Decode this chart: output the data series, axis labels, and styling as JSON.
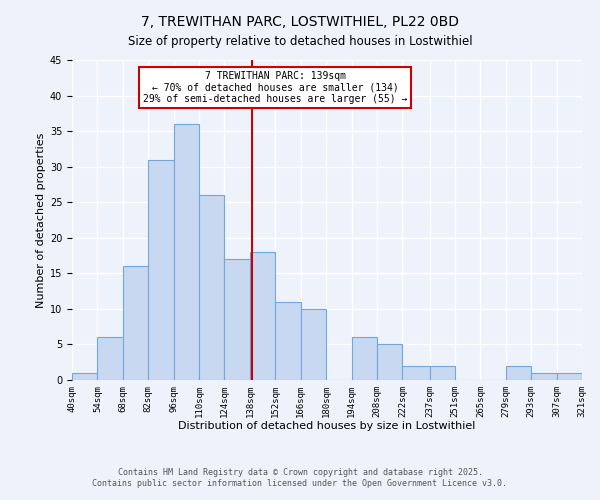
{
  "title": "7, TREWITHAN PARC, LOSTWITHIEL, PL22 0BD",
  "subtitle": "Size of property relative to detached houses in Lostwithiel",
  "xlabel": "Distribution of detached houses by size in Lostwithiel",
  "ylabel": "Number of detached properties",
  "bin_edges": [
    40,
    54,
    68,
    82,
    96,
    110,
    124,
    138,
    152,
    166,
    180,
    194,
    208,
    222,
    237,
    251,
    265,
    279,
    293,
    307,
    321
  ],
  "counts": [
    1,
    6,
    16,
    31,
    36,
    26,
    17,
    18,
    11,
    10,
    0,
    6,
    5,
    2,
    2,
    0,
    0,
    2,
    1,
    1
  ],
  "bar_color": "#c8d8f0",
  "bar_edge_color": "#6fa8dc",
  "property_size": 139,
  "vline_color": "#cc0000",
  "annotation_title": "7 TREWITHAN PARC: 139sqm",
  "annotation_line1": "← 70% of detached houses are smaller (134)",
  "annotation_line2": "29% of semi-detached houses are larger (55) →",
  "annotation_box_color": "#ffffff",
  "annotation_box_edge": "#cc0000",
  "ylim": [
    0,
    45
  ],
  "yticks": [
    0,
    5,
    10,
    15,
    20,
    25,
    30,
    35,
    40,
    45
  ],
  "footer1": "Contains HM Land Registry data © Crown copyright and database right 2025.",
  "footer2": "Contains public sector information licensed under the Open Government Licence v3.0.",
  "background_color": "#eef2fb",
  "grid_color": "#ffffff",
  "tick_labels": [
    "40sqm",
    "54sqm",
    "68sqm",
    "82sqm",
    "96sqm",
    "110sqm",
    "124sqm",
    "138sqm",
    "152sqm",
    "166sqm",
    "180sqm",
    "194sqm",
    "208sqm",
    "222sqm",
    "237sqm",
    "251sqm",
    "265sqm",
    "279sqm",
    "293sqm",
    "307sqm",
    "321sqm"
  ],
  "title_fontsize": 10,
  "subtitle_fontsize": 8.5,
  "axis_label_fontsize": 8,
  "tick_fontsize": 6.5,
  "annotation_fontsize": 7,
  "footer_fontsize": 6
}
